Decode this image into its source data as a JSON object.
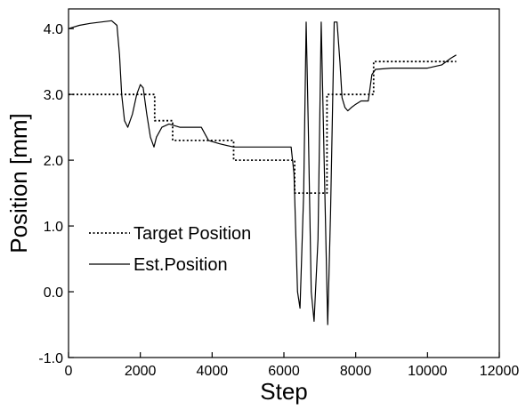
{
  "chart_data": {
    "type": "line",
    "title": "",
    "xlabel": "Step",
    "ylabel": "Position [mm]",
    "xlim": [
      0,
      12000
    ],
    "ylim": [
      -1.0,
      4.3
    ],
    "xticks": [
      0,
      2000,
      4000,
      6000,
      8000,
      10000,
      12000
    ],
    "xtick_labels": [
      "0",
      "2000",
      "4000",
      "6000",
      "8000",
      "10000",
      "12000"
    ],
    "yticks": [
      -1.0,
      0.0,
      1.0,
      2.0,
      3.0,
      4.0
    ],
    "ytick_labels": [
      "-1.0",
      "0.0",
      "1.0",
      "2.0",
      "3.0",
      "4.0"
    ],
    "grid": false,
    "legend_position": "center-left",
    "series": [
      {
        "name": "Target Position",
        "style": "dotted",
        "color": "#000000",
        "step": true,
        "x": [
          0,
          2400,
          2400,
          2900,
          2900,
          3200,
          3200,
          4600,
          4600,
          6300,
          6300,
          7200,
          7200,
          8500,
          8500,
          10800
        ],
        "y": [
          3.0,
          3.0,
          2.6,
          2.6,
          2.3,
          2.3,
          2.3,
          2.3,
          2.0,
          2.0,
          1.5,
          1.5,
          3.0,
          3.0,
          3.5,
          3.5
        ]
      },
      {
        "name": "Est.Position",
        "style": "solid",
        "color": "#000000",
        "step": false,
        "x": [
          0,
          300,
          600,
          900,
          1200,
          1350,
          1420,
          1480,
          1560,
          1650,
          1780,
          1900,
          2000,
          2080,
          2180,
          2280,
          2380,
          2450,
          2600,
          2800,
          3100,
          3400,
          3700,
          3900,
          4200,
          4600,
          5000,
          5500,
          6000,
          6200,
          6280,
          6380,
          6450,
          6550,
          6620,
          6680,
          6760,
          6840,
          6950,
          7040,
          7120,
          7220,
          7300,
          7400,
          7480,
          7560,
          7620,
          7700,
          7780,
          7880,
          8000,
          8150,
          8250,
          8350,
          8450,
          8550,
          9000,
          9500,
          10000,
          10400,
          10650,
          10800
        ],
        "y": [
          4.0,
          4.05,
          4.08,
          4.1,
          4.12,
          4.05,
          3.6,
          3.0,
          2.6,
          2.5,
          2.7,
          3.0,
          3.15,
          3.1,
          2.7,
          2.35,
          2.2,
          2.35,
          2.5,
          2.55,
          2.5,
          2.5,
          2.5,
          2.3,
          2.25,
          2.2,
          2.2,
          2.2,
          2.2,
          2.2,
          1.8,
          0.0,
          -0.25,
          1.5,
          4.1,
          2.5,
          0.0,
          -0.45,
          0.8,
          4.1,
          2.0,
          -0.5,
          1.2,
          4.1,
          4.1,
          3.5,
          2.95,
          2.8,
          2.75,
          2.8,
          2.85,
          2.9,
          2.9,
          2.9,
          3.3,
          3.38,
          3.4,
          3.4,
          3.4,
          3.45,
          3.55,
          3.6
        ]
      }
    ]
  }
}
